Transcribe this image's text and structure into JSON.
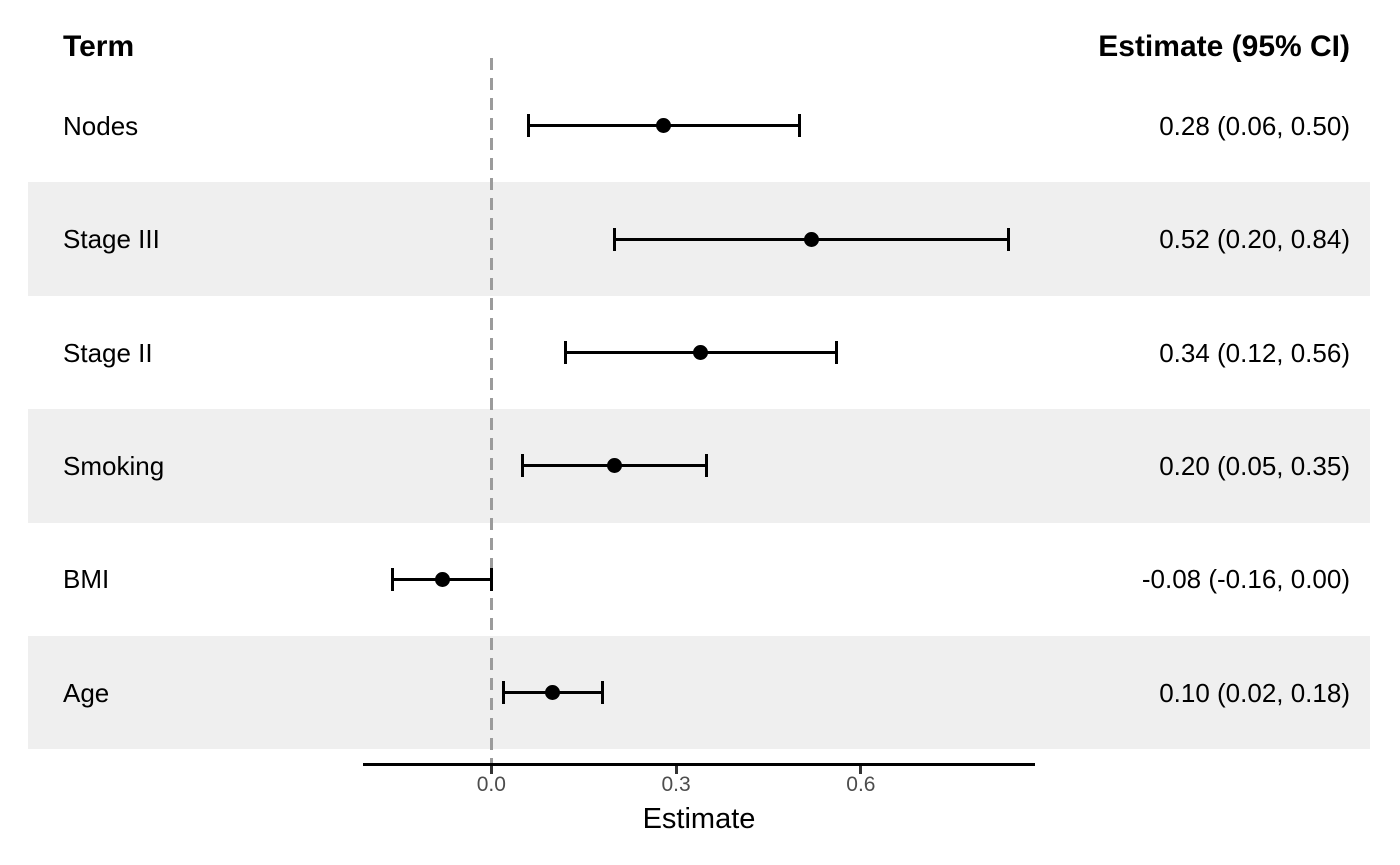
{
  "header": {
    "term_label": "Term",
    "estimate_label": "Estimate (95% CI)"
  },
  "colors": {
    "band": "#EFEFEF",
    "marker": "#000000",
    "reference_line": "#9B9B9B",
    "axis_tick_text": "#4D4D4D",
    "text": "#000000",
    "background": "#FFFFFF"
  },
  "chart_data": {
    "type": "forest",
    "title": "",
    "xlabel": "Estimate",
    "ylabel": "",
    "xlim": [
      -0.21,
      0.88
    ],
    "x_ticks": [
      0.0,
      0.3,
      0.6
    ],
    "x_tick_labels": [
      "0.0",
      "0.3",
      "0.6"
    ],
    "reference_line_x": 0.0,
    "grid": false,
    "legend": false,
    "rows": [
      {
        "term": "Nodes",
        "estimate": 0.28,
        "ci_low": 0.06,
        "ci_high": 0.5,
        "estimate_text": "0.28 (0.06, 0.50)",
        "shaded": false
      },
      {
        "term": "Stage III",
        "estimate": 0.52,
        "ci_low": 0.2,
        "ci_high": 0.84,
        "estimate_text": "0.52 (0.20, 0.84)",
        "shaded": true
      },
      {
        "term": "Stage II",
        "estimate": 0.34,
        "ci_low": 0.12,
        "ci_high": 0.56,
        "estimate_text": "0.34 (0.12, 0.56)",
        "shaded": false
      },
      {
        "term": "Smoking",
        "estimate": 0.2,
        "ci_low": 0.05,
        "ci_high": 0.35,
        "estimate_text": "0.20 (0.05, 0.35)",
        "shaded": true
      },
      {
        "term": "BMI",
        "estimate": -0.08,
        "ci_low": -0.16,
        "ci_high": 0.0,
        "estimate_text": "-0.08 (-0.16, 0.00)",
        "shaded": false
      },
      {
        "term": "Age",
        "estimate": 0.1,
        "ci_low": 0.02,
        "ci_high": 0.18,
        "estimate_text": "0.10 (0.02, 0.18)",
        "shaded": true
      }
    ]
  }
}
